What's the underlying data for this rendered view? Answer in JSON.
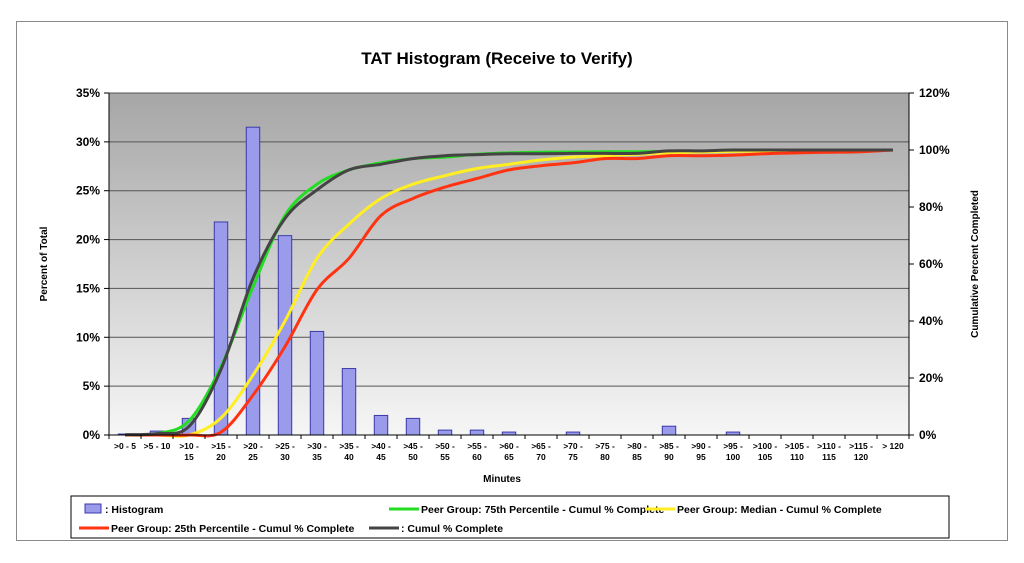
{
  "chart_data": {
    "type": "bar+line",
    "title": "TAT Histogram (Receive to Verify)",
    "xlabel": "Minutes",
    "ylabel": "Percent of Total",
    "y2label": "Cumulative Percent Completed",
    "ylim": [
      0,
      35
    ],
    "y2lim": [
      0,
      120
    ],
    "yticks": [
      "0%",
      "5%",
      "10%",
      "15%",
      "20%",
      "25%",
      "30%",
      "35%"
    ],
    "y2ticks": [
      "0%",
      "20%",
      "40%",
      "60%",
      "80%",
      "100%",
      "120%"
    ],
    "categories": [
      [
        ">0 - 5"
      ],
      [
        ">5 - 10"
      ],
      [
        ">10 -",
        "15"
      ],
      [
        ">15 -",
        "20"
      ],
      [
        ">20 -",
        "25"
      ],
      [
        ">25 -",
        "30"
      ],
      [
        ">30 -",
        "35"
      ],
      [
        ">35 -",
        "40"
      ],
      [
        ">40 -",
        "45"
      ],
      [
        ">45 -",
        "50"
      ],
      [
        ">50 -",
        "55"
      ],
      [
        ">55 -",
        "60"
      ],
      [
        ">60 -",
        "65"
      ],
      [
        ">65 -",
        "70"
      ],
      [
        ">70 -",
        "75"
      ],
      [
        ">75 -",
        "80"
      ],
      [
        ">80 -",
        "85"
      ],
      [
        ">85 -",
        "90"
      ],
      [
        ">90 -",
        "95"
      ],
      [
        ">95 -",
        "100"
      ],
      [
        ">100 -",
        "105"
      ],
      [
        ">105 -",
        "110"
      ],
      [
        ">110 -",
        "115"
      ],
      [
        ">115 -",
        "120"
      ],
      [
        "> 120"
      ]
    ],
    "grid": true,
    "legend_position": "bottom",
    "series": [
      {
        "name": ": Histogram",
        "axis": "left",
        "kind": "bar",
        "color": "#9b9bec",
        "values": [
          0.1,
          0.4,
          1.7,
          21.8,
          31.5,
          20.4,
          10.6,
          6.8,
          2.0,
          1.7,
          0.5,
          0.5,
          0.3,
          0.0,
          0.3,
          0.0,
          0.0,
          0.9,
          0.0,
          0.3,
          0.0,
          0.0,
          0.0,
          0.0,
          0.0
        ]
      },
      {
        "name": "Peer Group: 75th Percentile - Cumul % Complete",
        "axis": "right",
        "kind": "line",
        "color": "#22dd22",
        "values": [
          0,
          0.5,
          5,
          24,
          52,
          77,
          88,
          93,
          95.5,
          97,
          97.5,
          98.5,
          99,
          99.2,
          99.3,
          99.4,
          99.4,
          99.5,
          99.6,
          99.7,
          99.8,
          99.8,
          99.9,
          99.9,
          100
        ]
      },
      {
        "name": "Peer Group: Median - Cumul % Complete",
        "axis": "right",
        "kind": "line",
        "color": "#ffee22",
        "values": [
          0,
          0,
          0,
          6,
          21,
          40,
          62,
          74,
          83,
          88,
          91,
          93.5,
          95,
          96.5,
          97.5,
          98,
          98.5,
          99,
          99.3,
          99.5,
          99.6,
          99.7,
          99.8,
          99.9,
          100
        ]
      },
      {
        "name": "Peer Group: 25th Percentile - Cumul % Complete",
        "axis": "right",
        "kind": "line",
        "color": "#ff3311",
        "values": [
          0,
          0,
          0,
          1,
          14,
          31,
          51,
          62,
          77,
          83,
          87,
          90,
          93,
          94.5,
          95.5,
          97,
          97,
          98,
          98,
          98.2,
          98.7,
          99,
          99.2,
          99.4,
          100
        ]
      },
      {
        "name": ": Cumul % Complete",
        "axis": "right",
        "kind": "line",
        "color": "#444444",
        "values": [
          0.1,
          0.5,
          3,
          23,
          55,
          76,
          86,
          93,
          95,
          97,
          98,
          98.4,
          98.7,
          98.7,
          98.8,
          98.8,
          98.8,
          99.7,
          99.7,
          100,
          100,
          100,
          100,
          100,
          100
        ]
      }
    ]
  }
}
